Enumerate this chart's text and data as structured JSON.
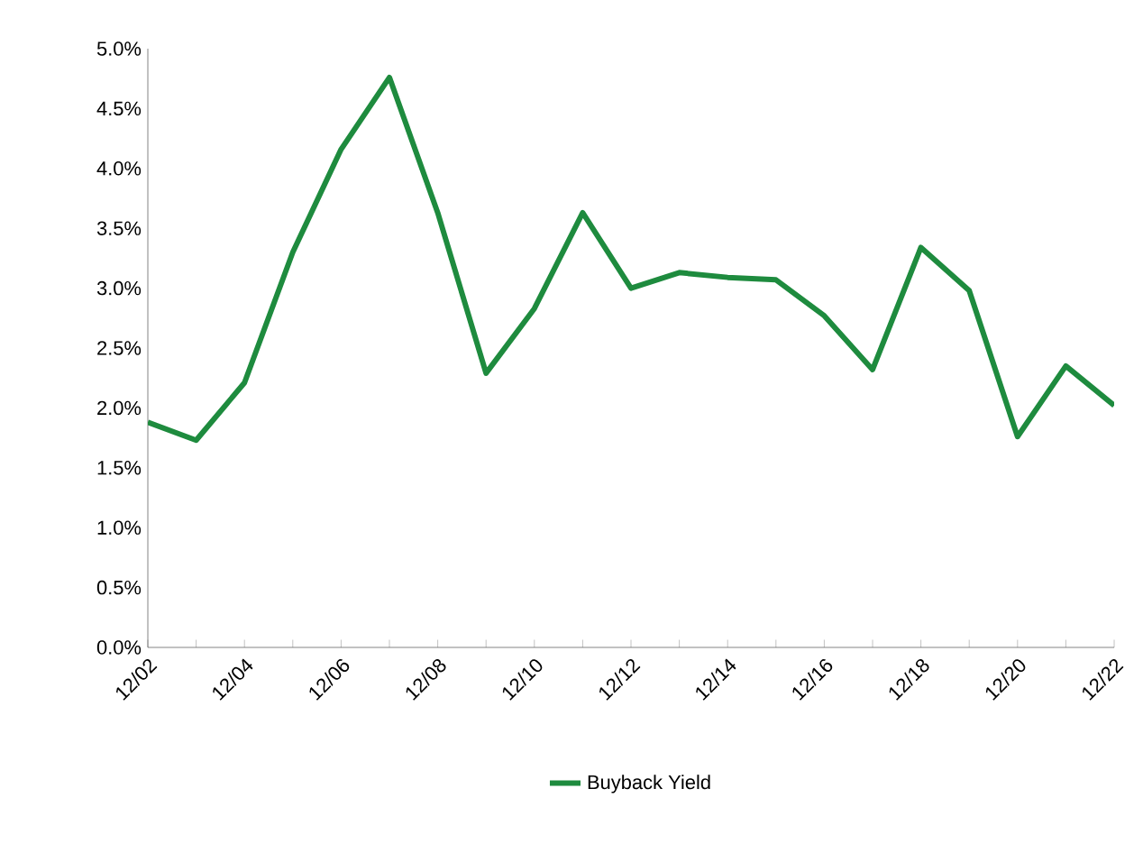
{
  "chart_data": {
    "type": "line",
    "categories": [
      "12/02",
      null,
      "12/04",
      null,
      "12/06",
      null,
      "12/08",
      null,
      "12/10",
      null,
      "12/12",
      null,
      "12/14",
      null,
      "12/16",
      null,
      "12/18",
      null,
      "12/20",
      null,
      "12/22"
    ],
    "series": [
      {
        "name": "Buyback Yield",
        "color": "#1e8b3e",
        "values": [
          1.88,
          1.73,
          2.21,
          3.3,
          4.16,
          4.76,
          3.63,
          2.29,
          2.83,
          3.63,
          3.0,
          3.13,
          3.09,
          3.07,
          2.77,
          2.32,
          3.34,
          2.98,
          1.76,
          2.35,
          2.02
        ]
      }
    ],
    "ylim": [
      0,
      5
    ],
    "yticks": [
      {
        "value": 0,
        "label": "0.0%"
      },
      {
        "value": 0.5,
        "label": "0.5%"
      },
      {
        "value": 1,
        "label": "1.0%"
      },
      {
        "value": 1.5,
        "label": "1.5%"
      },
      {
        "value": 2,
        "label": "2.0%"
      },
      {
        "value": 2.5,
        "label": "2.5%"
      },
      {
        "value": 3,
        "label": "3.0%"
      },
      {
        "value": 3.5,
        "label": "3.5%"
      },
      {
        "value": 4,
        "label": "4.0%"
      },
      {
        "value": 4.5,
        "label": "4.5%"
      },
      {
        "value": 5,
        "label": "5.0%"
      }
    ],
    "legend": "bottom"
  }
}
